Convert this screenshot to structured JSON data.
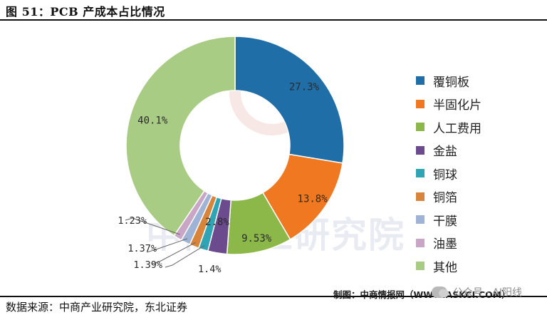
{
  "figure": {
    "title": "图 51：PCB 产成本占比情况",
    "credit": "制图：中商情报网（WWW.ASKCI.COM）",
    "source": "数据来源：中商产业研究院，东北证券",
    "watermark": "公众号 · AI阳线",
    "background_watermark": "中商产业研究院"
  },
  "chart_data": {
    "type": "pie",
    "subtype": "donut",
    "start_angle_deg": 0,
    "direction": "clockwise",
    "legend_position": "right",
    "labels": [
      "覆铜板",
      "半固化片",
      "人工费用",
      "金盐",
      "铜球",
      "铜箔",
      "干膜",
      "油墨",
      "其他"
    ],
    "values": [
      27.3,
      13.8,
      9.53,
      2.8,
      1.4,
      1.39,
      1.37,
      1.23,
      40.1
    ],
    "value_labels": [
      "27.3%",
      "13.8%",
      "9.53%",
      "2.8%",
      "1.4%",
      "1.39%",
      "1.37%",
      "1.23%",
      "40.1%"
    ],
    "colors": [
      "#1f6ea8",
      "#f07820",
      "#8cb84a",
      "#6b4a8e",
      "#2fa4b4",
      "#d8843a",
      "#9fb3d6",
      "#c9a6c6",
      "#a9cc84"
    ]
  }
}
